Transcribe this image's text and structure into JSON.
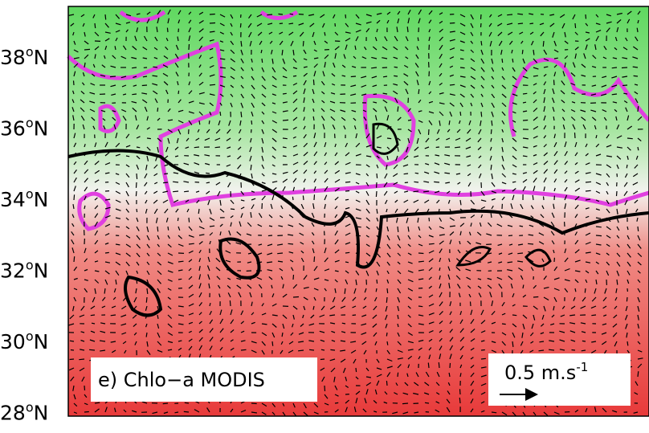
{
  "map": {
    "lat_labels": [
      {
        "number": "38",
        "degree": "o",
        "hemisphere": "N"
      },
      {
        "number": "36",
        "degree": "o",
        "hemisphere": "N"
      },
      {
        "number": "34",
        "degree": "o",
        "hemisphere": "N"
      },
      {
        "number": "32",
        "degree": "o",
        "hemisphere": "N"
      },
      {
        "number": "30",
        "degree": "o",
        "hemisphere": "N"
      },
      {
        "number": "28",
        "degree": "o",
        "hemisphere": "N"
      }
    ],
    "panel_label": "e) Chlo−a MODIS",
    "scale": {
      "text": "0.5 m.s",
      "exponent": "-1"
    }
  }
}
